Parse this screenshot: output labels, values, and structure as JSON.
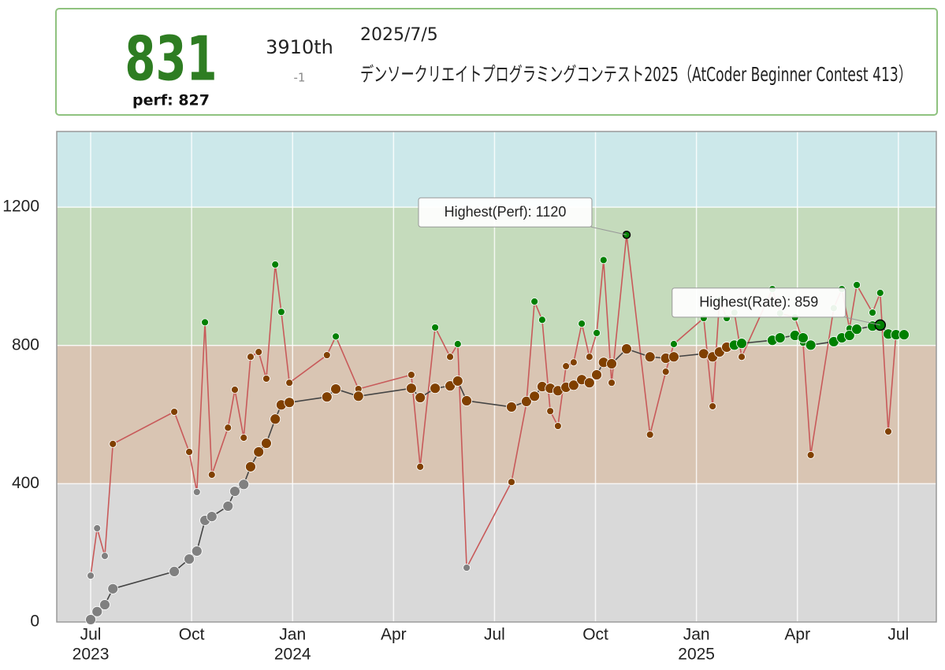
{
  "header": {
    "rating": 831,
    "perf": "perf: 827",
    "rank": "3910th",
    "rank_change": "-1",
    "date": "2025/7/5",
    "contest": "デンソークリエイトプログラミングコンテスト2025（AtCoder Beginner Contest 413）"
  },
  "chart_data": {
    "type": "line",
    "x": [
      2023.5,
      2023.516,
      2023.535,
      2023.555,
      2023.707,
      2023.744,
      2023.763,
      2023.783,
      2023.8,
      2023.84,
      2023.857,
      2023.879,
      2023.896,
      2023.916,
      2023.935,
      2023.957,
      2023.972,
      2023.992,
      2024.085,
      2024.107,
      2024.163,
      2024.294,
      2024.316,
      2024.353,
      2024.39,
      2024.409,
      2024.431,
      2024.542,
      2024.579,
      2024.599,
      2024.618,
      2024.638,
      2024.657,
      2024.677,
      2024.696,
      2024.716,
      2024.735,
      2024.753,
      2024.77,
      2024.79,
      2024.827,
      2024.885,
      2024.924,
      2024.944,
      2025.018,
      2025.04,
      2025.057,
      2025.075,
      2025.094,
      2025.112,
      2025.188,
      2025.207,
      2025.244,
      2025.264,
      2025.283,
      2025.34,
      2025.36,
      2025.379,
      2025.397,
      2025.436,
      2025.455,
      2025.475,
      2025.494,
      2025.514
    ],
    "series": [
      {
        "color": "#444444",
        "values": [
          7,
          30,
          50,
          96,
          146,
          182,
          205,
          294,
          305,
          335,
          378,
          398,
          449,
          492,
          517,
          587,
          628,
          635,
          651,
          674,
          653,
          676,
          649,
          676,
          683,
          697,
          640,
          622,
          638,
          653,
          681,
          676,
          669,
          679,
          685,
          701,
          692,
          715,
          751,
          747,
          790,
          767,
          763,
          767,
          776,
          767,
          781,
          795,
          801,
          806,
          815,
          822,
          829,
          822,
          801,
          811,
          822,
          829,
          847,
          856,
          859,
          833,
          831,
          831
        ]
      },
      {
        "color": "#c85a5a",
        "values": [
          134,
          271,
          191,
          515,
          608,
          492,
          376,
          867,
          426,
          562,
          672,
          533,
          767,
          781,
          704,
          1034,
          897,
          692,
          772,
          826,
          674,
          715,
          449,
          852,
          767,
          804,
          157,
          405,
          633,
          927,
          874,
          610,
          567,
          740,
          751,
          863,
          767,
          836,
          1047,
          692,
          1120,
          542,
          724,
          804,
          879,
          624,
          931,
          879,
          895,
          767,
          963,
          893,
          881,
          808,
          483,
          908,
          963,
          849,
          975,
          895,
          952,
          551,
          831,
          827
        ]
      }
    ],
    "annotations": [
      "Highest(Perf): 1120",
      "Highest(Rate): 859"
    ],
    "bands": [
      {
        "from": 0,
        "color": "#d9d9d9",
        "point_color": "#808080"
      },
      {
        "from": 400,
        "color": "#d9c5b3",
        "point_color": "#804000"
      },
      {
        "from": 800,
        "color": "#c5dbbc",
        "point_color": "#008000"
      },
      {
        "from": 1200,
        "color": "#cce8ea",
        "point_color": "#00c0c0"
      }
    ],
    "xlim": [
      2023.416,
      2025.594
    ],
    "ylim": [
      0,
      1419
    ],
    "xticks": [
      {
        "value": 2023.5,
        "label": "Jul"
      },
      {
        "value": 2023.75,
        "label": "Oct"
      },
      {
        "value": 2024.0,
        "label": "Jan"
      },
      {
        "value": 2024.25,
        "label": "Apr"
      },
      {
        "value": 2024.5,
        "label": "Jul"
      },
      {
        "value": 2024.75,
        "label": "Oct"
      },
      {
        "value": 2025.0,
        "label": "Jan"
      },
      {
        "value": 2025.25,
        "label": "Apr"
      },
      {
        "value": 2025.5,
        "label": "Jul"
      }
    ],
    "xtick_years": [
      {
        "value": 2023.5,
        "label": "2023"
      },
      {
        "value": 2024.0,
        "label": "2024"
      },
      {
        "value": 2025.0,
        "label": "2025"
      }
    ],
    "yticks": [
      0,
      400,
      800,
      1200
    ],
    "grid": true
  }
}
